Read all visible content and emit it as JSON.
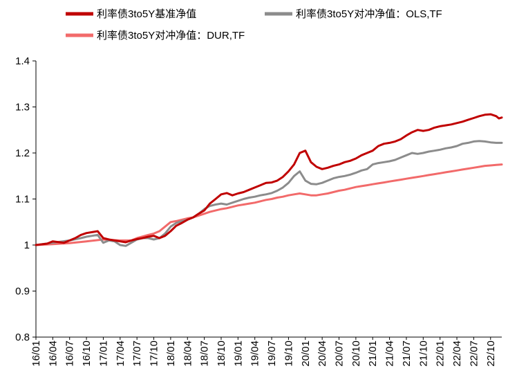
{
  "chart_data": {
    "type": "line",
    "title": "",
    "xlabel": "",
    "ylabel": "",
    "ylim": [
      0.8,
      1.4
    ],
    "yticks": [
      0.8,
      0.9,
      1,
      1.1,
      1.2,
      1.3,
      1.4
    ],
    "ytick_labels": [
      "0.8",
      "0.9",
      "1",
      "1.1",
      "1.2",
      "1.3",
      "1.4"
    ],
    "grid": false,
    "legend_position": "top",
    "x_unit": "months since 2016/01",
    "xlim": [
      0,
      83
    ],
    "xtick_labels": [
      "16/01",
      "16/04",
      "16/07",
      "16/10",
      "17/01",
      "17/04",
      "17/07",
      "17/10",
      "18/01",
      "18/04",
      "18/07",
      "18/10",
      "19/01",
      "19/04",
      "19/07",
      "19/10",
      "20/01",
      "20/04",
      "20/07",
      "20/10",
      "21/01",
      "21/04",
      "21/07",
      "21/10",
      "22/01",
      "22/04",
      "22/07",
      "22/10"
    ],
    "series": [
      {
        "name": "利率债3to5Y基准净值",
        "color": "#c00000",
        "x": [
          0,
          2,
          3,
          5,
          6,
          7,
          8,
          9,
          10,
          11,
          12,
          13,
          14,
          15,
          16,
          17,
          18,
          19,
          20,
          21,
          22,
          23,
          24,
          25,
          26,
          27,
          28,
          29,
          30,
          31,
          32,
          33,
          34,
          35,
          36,
          37,
          38,
          39,
          40,
          41,
          42,
          43,
          44,
          45,
          46,
          47,
          48,
          49,
          50,
          51,
          52,
          53,
          54,
          55,
          56,
          57,
          58,
          59,
          60,
          61,
          62,
          63,
          64,
          65,
          66,
          67,
          68,
          69,
          70,
          71,
          72,
          73,
          74,
          75,
          76,
          77,
          78,
          79,
          80,
          81,
          82,
          82.5,
          83
        ],
        "y": [
          1.0,
          1.003,
          1.008,
          1.005,
          1.01,
          1.015,
          1.022,
          1.026,
          1.028,
          1.03,
          1.015,
          1.012,
          1.01,
          1.008,
          1.006,
          1.01,
          1.013,
          1.015,
          1.018,
          1.02,
          1.015,
          1.02,
          1.03,
          1.042,
          1.048,
          1.055,
          1.06,
          1.068,
          1.075,
          1.09,
          1.1,
          1.11,
          1.113,
          1.108,
          1.112,
          1.115,
          1.12,
          1.125,
          1.13,
          1.135,
          1.136,
          1.14,
          1.148,
          1.16,
          1.175,
          1.2,
          1.205,
          1.18,
          1.17,
          1.165,
          1.168,
          1.172,
          1.175,
          1.18,
          1.183,
          1.188,
          1.195,
          1.2,
          1.205,
          1.215,
          1.22,
          1.222,
          1.225,
          1.23,
          1.238,
          1.245,
          1.25,
          1.248,
          1.25,
          1.255,
          1.258,
          1.26,
          1.262,
          1.265,
          1.268,
          1.272,
          1.276,
          1.28,
          1.283,
          1.284,
          1.28,
          1.275,
          1.277
        ]
      },
      {
        "name": "利率债3to5Y对冲净值：OLS,TF",
        "color": "#8c8c8c",
        "x": [
          0,
          3,
          6,
          8,
          9,
          10,
          11,
          12,
          13,
          14,
          15,
          16,
          17,
          18,
          19,
          20,
          21,
          22,
          23,
          24,
          25,
          26,
          27,
          28,
          29,
          30,
          31,
          32,
          33,
          34,
          35,
          36,
          37,
          38,
          39,
          40,
          41,
          42,
          43,
          44,
          45,
          46,
          47,
          48,
          49,
          50,
          51,
          52,
          53,
          54,
          55,
          56,
          57,
          58,
          59,
          60,
          61,
          62,
          63,
          64,
          65,
          66,
          67,
          68,
          69,
          70,
          71,
          72,
          73,
          74,
          75,
          76,
          77,
          78,
          79,
          80,
          81,
          82,
          83
        ],
        "y": [
          1.0,
          1.005,
          1.01,
          1.015,
          1.018,
          1.02,
          1.022,
          1.005,
          1.01,
          1.008,
          1.0,
          0.998,
          1.005,
          1.012,
          1.015,
          1.015,
          1.012,
          1.015,
          1.025,
          1.04,
          1.048,
          1.052,
          1.055,
          1.06,
          1.068,
          1.078,
          1.085,
          1.088,
          1.09,
          1.088,
          1.092,
          1.096,
          1.1,
          1.103,
          1.105,
          1.108,
          1.11,
          1.113,
          1.118,
          1.125,
          1.135,
          1.15,
          1.16,
          1.14,
          1.133,
          1.132,
          1.135,
          1.14,
          1.145,
          1.148,
          1.15,
          1.153,
          1.157,
          1.162,
          1.165,
          1.175,
          1.178,
          1.18,
          1.182,
          1.185,
          1.19,
          1.195,
          1.2,
          1.198,
          1.2,
          1.203,
          1.205,
          1.207,
          1.21,
          1.212,
          1.215,
          1.22,
          1.222,
          1.225,
          1.226,
          1.225,
          1.223,
          1.222,
          1.222
        ]
      },
      {
        "name": "利率债3to5Y对冲净值：DUR,TF",
        "color": "#f26a6a",
        "x": [
          0,
          3,
          6,
          9,
          12,
          15,
          17,
          18,
          20,
          21,
          22,
          23,
          24,
          25,
          26,
          27,
          28,
          29,
          30,
          31,
          32,
          33,
          34,
          35,
          36,
          37,
          38,
          39,
          40,
          41,
          42,
          43,
          44,
          45,
          46,
          47,
          48,
          49,
          50,
          51,
          52,
          53,
          54,
          55,
          56,
          57,
          58,
          59,
          60,
          61,
          62,
          63,
          64,
          65,
          66,
          67,
          68,
          69,
          70,
          71,
          72,
          73,
          74,
          75,
          76,
          77,
          78,
          79,
          80,
          81,
          82,
          83
        ],
        "y": [
          1.0,
          1.002,
          1.004,
          1.008,
          1.012,
          1.01,
          1.01,
          1.015,
          1.022,
          1.025,
          1.03,
          1.04,
          1.05,
          1.052,
          1.055,
          1.058,
          1.06,
          1.064,
          1.068,
          1.072,
          1.075,
          1.078,
          1.08,
          1.083,
          1.086,
          1.088,
          1.09,
          1.092,
          1.095,
          1.098,
          1.1,
          1.103,
          1.105,
          1.108,
          1.11,
          1.112,
          1.11,
          1.108,
          1.108,
          1.11,
          1.112,
          1.115,
          1.118,
          1.12,
          1.123,
          1.126,
          1.128,
          1.13,
          1.132,
          1.134,
          1.136,
          1.138,
          1.14,
          1.142,
          1.144,
          1.146,
          1.148,
          1.15,
          1.152,
          1.154,
          1.156,
          1.158,
          1.16,
          1.162,
          1.164,
          1.166,
          1.168,
          1.17,
          1.172,
          1.173,
          1.174,
          1.175
        ]
      }
    ]
  }
}
